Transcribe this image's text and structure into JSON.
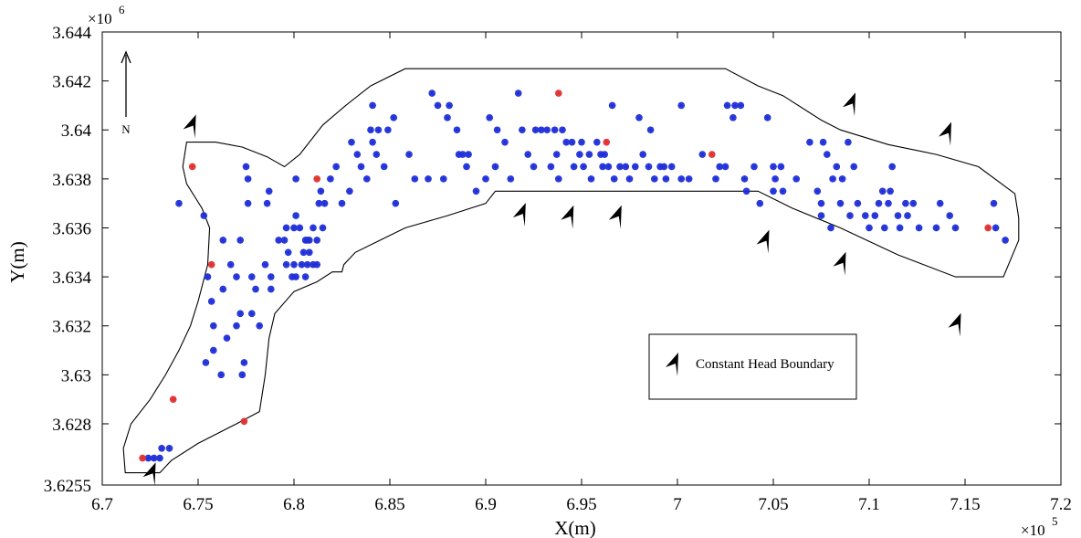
{
  "chart_data": {
    "type": "scatter",
    "xlabel": "X(m)",
    "ylabel": "Y(m)",
    "x_exponent_label": "×10",
    "x_exponent": "5",
    "y_exponent_label": "×10",
    "y_exponent": "6",
    "north_label": "N",
    "xlim": [
      6.7,
      7.2
    ],
    "ylim": [
      3.6255,
      3.644
    ],
    "x_ticks": [
      6.7,
      6.75,
      6.8,
      6.85,
      6.9,
      6.95,
      7.0,
      7.05,
      7.1,
      7.15,
      7.2
    ],
    "x_tick_labels": [
      "6.7",
      "6.75",
      "6.8",
      "6.85",
      "6.9",
      "6.95",
      "7",
      "7.05",
      "7.1",
      "7.15",
      "7.2"
    ],
    "y_ticks": [
      3.6255,
      3.628,
      3.63,
      3.632,
      3.634,
      3.636,
      3.638,
      3.64,
      3.642,
      3.644
    ],
    "y_tick_labels": [
      "3.6255",
      "3.628",
      "3.63",
      "3.632",
      "3.634",
      "3.636",
      "3.638",
      "3.64",
      "3.642",
      "3.644"
    ],
    "grid": false,
    "colors": {
      "wells_blue": "#1f2fd8",
      "wells_red": "#e03030",
      "boundary": "#000000"
    },
    "legend": {
      "placement": "bottom-right-inside",
      "entries": [
        {
          "label": "Constant Head Boundary",
          "marker": "arrowhead"
        }
      ]
    },
    "boundary_polygon": [
      [
        6.744,
        3.6395
      ],
      [
        6.759,
        3.6395
      ],
      [
        6.773,
        3.6393
      ],
      [
        6.786,
        3.6389
      ],
      [
        6.795,
        3.6385
      ],
      [
        6.803,
        3.639
      ],
      [
        6.815,
        3.6402
      ],
      [
        6.827,
        3.641
      ],
      [
        6.84,
        3.6418
      ],
      [
        6.858,
        3.6425
      ],
      [
        6.87,
        3.6425
      ],
      [
        6.9,
        3.6425
      ],
      [
        7.025,
        3.6425
      ],
      [
        7.042,
        3.6418
      ],
      [
        7.055,
        3.6414
      ],
      [
        7.075,
        3.6404
      ],
      [
        7.085,
        3.64
      ],
      [
        7.11,
        3.6394
      ],
      [
        7.135,
        3.639
      ],
      [
        7.157,
        3.6385
      ],
      [
        7.176,
        3.6374
      ],
      [
        7.178,
        3.6364
      ],
      [
        7.178,
        3.6355
      ],
      [
        7.17,
        3.634
      ],
      [
        7.145,
        3.634
      ],
      [
        7.115,
        3.6349
      ],
      [
        7.085,
        3.636
      ],
      [
        7.06,
        3.6368
      ],
      [
        7.042,
        3.6375
      ],
      [
        7.032,
        3.6375
      ],
      [
        6.905,
        3.6375
      ],
      [
        6.9,
        3.637
      ],
      [
        6.88,
        3.6365
      ],
      [
        6.858,
        3.636
      ],
      [
        6.845,
        3.6355
      ],
      [
        6.832,
        3.635
      ],
      [
        6.826,
        3.6345
      ],
      [
        6.825,
        3.6342
      ],
      [
        6.82,
        3.6342
      ],
      [
        6.812,
        3.6338
      ],
      [
        6.8,
        3.6334
      ],
      [
        6.79,
        3.6325
      ],
      [
        6.787,
        3.6315
      ],
      [
        6.785,
        3.63
      ],
      [
        6.783,
        3.629
      ],
      [
        6.782,
        3.6285
      ],
      [
        6.77,
        3.628
      ],
      [
        6.75,
        3.6272
      ],
      [
        6.736,
        3.6265
      ],
      [
        6.73,
        3.626
      ],
      [
        6.712,
        3.626
      ],
      [
        6.711,
        3.627
      ],
      [
        6.715,
        3.628
      ],
      [
        6.725,
        3.629
      ],
      [
        6.733,
        3.63
      ],
      [
        6.74,
        3.631
      ],
      [
        6.746,
        3.632
      ],
      [
        6.75,
        3.633
      ],
      [
        6.755,
        3.6345
      ],
      [
        6.756,
        3.636
      ],
      [
        6.752,
        3.6368
      ],
      [
        6.744,
        3.6378
      ],
      [
        6.742,
        3.6385
      ]
    ],
    "boundary_arrows": [
      [
        6.725,
        3.6259
      ],
      [
        6.746,
        3.6401
      ],
      [
        6.918,
        3.6365
      ],
      [
        6.943,
        3.6364
      ],
      [
        6.968,
        3.6364
      ],
      [
        7.045,
        3.6354
      ],
      [
        7.085,
        3.6345
      ],
      [
        7.09,
        3.641
      ],
      [
        7.14,
        3.6398
      ],
      [
        7.145,
        3.632
      ],
      [
        7.009,
        3.6305
      ]
    ],
    "series": [
      {
        "name": "",
        "color": "#e03030",
        "points": [
          [
            6.747,
            3.6385
          ],
          [
            6.812,
            3.638
          ],
          [
            6.938,
            3.6415
          ],
          [
            6.963,
            3.6395
          ],
          [
            7.018,
            3.639
          ],
          [
            7.162,
            3.636
          ],
          [
            6.757,
            3.6345
          ],
          [
            6.737,
            3.629
          ],
          [
            6.774,
            3.6281
          ],
          [
            6.721,
            3.6266
          ]
        ]
      },
      {
        "name": "",
        "color": "#1f2fd8",
        "points": [
          [
            6.724,
            3.6266
          ],
          [
            6.727,
            3.6266
          ],
          [
            6.73,
            3.6266
          ],
          [
            6.731,
            3.627
          ],
          [
            6.735,
            3.627
          ],
          [
            6.74,
            3.637
          ],
          [
            6.753,
            3.6365
          ],
          [
            6.755,
            3.634
          ],
          [
            6.757,
            3.633
          ],
          [
            6.758,
            3.632
          ],
          [
            6.758,
            3.631
          ],
          [
            6.754,
            3.6305
          ],
          [
            6.762,
            3.63
          ],
          [
            6.763,
            3.6335
          ],
          [
            6.765,
            3.6315
          ],
          [
            6.763,
            3.6355
          ],
          [
            6.767,
            3.6345
          ],
          [
            6.77,
            3.634
          ],
          [
            6.77,
            3.632
          ],
          [
            6.772,
            3.6325
          ],
          [
            6.774,
            3.6305
          ],
          [
            6.773,
            3.63
          ],
          [
            6.772,
            3.6355
          ],
          [
            6.775,
            3.6385
          ],
          [
            6.776,
            3.638
          ],
          [
            6.776,
            3.637
          ],
          [
            6.778,
            3.634
          ],
          [
            6.778,
            3.6325
          ],
          [
            6.78,
            3.6335
          ],
          [
            6.782,
            3.632
          ],
          [
            6.785,
            3.6345
          ],
          [
            6.786,
            3.637
          ],
          [
            6.787,
            3.6375
          ],
          [
            6.788,
            3.6335
          ],
          [
            6.788,
            3.634
          ],
          [
            6.792,
            3.6355
          ],
          [
            6.795,
            3.6355
          ],
          [
            6.796,
            3.636
          ],
          [
            6.796,
            3.6345
          ],
          [
            6.797,
            3.635
          ],
          [
            6.799,
            3.634
          ],
          [
            6.8,
            3.6345
          ],
          [
            6.8,
            3.636
          ],
          [
            6.801,
            3.638
          ],
          [
            6.801,
            3.6365
          ],
          [
            6.801,
            3.634
          ],
          [
            6.803,
            3.636
          ],
          [
            6.804,
            3.6345
          ],
          [
            6.805,
            3.635
          ],
          [
            6.806,
            3.6355
          ],
          [
            6.806,
            3.634
          ],
          [
            6.807,
            3.6355
          ],
          [
            6.807,
            3.6345
          ],
          [
            6.808,
            3.6355
          ],
          [
            6.808,
            3.635
          ],
          [
            6.81,
            3.6345
          ],
          [
            6.81,
            3.636
          ],
          [
            6.812,
            3.6345
          ],
          [
            6.812,
            3.6355
          ],
          [
            6.813,
            3.637
          ],
          [
            6.814,
            3.6375
          ],
          [
            6.815,
            3.636
          ],
          [
            6.816,
            3.637
          ],
          [
            6.819,
            3.638
          ],
          [
            6.822,
            3.6385
          ],
          [
            6.825,
            3.637
          ],
          [
            6.829,
            3.6375
          ],
          [
            6.83,
            3.6395
          ],
          [
            6.833,
            3.639
          ],
          [
            6.835,
            3.6385
          ],
          [
            6.838,
            3.638
          ],
          [
            6.84,
            3.64
          ],
          [
            6.841,
            3.6395
          ],
          [
            6.841,
            3.641
          ],
          [
            6.843,
            3.639
          ],
          [
            6.844,
            3.64
          ],
          [
            6.847,
            3.6385
          ],
          [
            6.849,
            3.64
          ],
          [
            6.852,
            3.6405
          ],
          [
            6.853,
            3.637
          ],
          [
            6.86,
            3.639
          ],
          [
            6.863,
            3.638
          ],
          [
            6.87,
            3.638
          ],
          [
            6.872,
            3.6415
          ],
          [
            6.875,
            3.641
          ],
          [
            6.878,
            3.638
          ],
          [
            6.88,
            3.6405
          ],
          [
            6.881,
            3.641
          ],
          [
            6.885,
            3.64
          ],
          [
            6.886,
            3.639
          ],
          [
            6.888,
            3.639
          ],
          [
            6.89,
            3.6385
          ],
          [
            6.891,
            3.639
          ],
          [
            6.895,
            3.6375
          ],
          [
            6.9,
            3.638
          ],
          [
            6.902,
            3.6405
          ],
          [
            6.905,
            3.6385
          ],
          [
            6.906,
            3.64
          ],
          [
            6.91,
            3.6395
          ],
          [
            6.913,
            3.638
          ],
          [
            6.917,
            3.6415
          ],
          [
            6.919,
            3.64
          ],
          [
            6.922,
            3.639
          ],
          [
            6.925,
            3.6385
          ],
          [
            6.926,
            3.64
          ],
          [
            6.929,
            3.64
          ],
          [
            6.932,
            3.64
          ],
          [
            6.934,
            3.6385
          ],
          [
            6.936,
            3.64
          ],
          [
            6.937,
            3.639
          ],
          [
            6.938,
            3.638
          ],
          [
            6.94,
            3.64
          ],
          [
            6.942,
            3.6395
          ],
          [
            6.945,
            3.6395
          ],
          [
            6.946,
            3.6385
          ],
          [
            6.949,
            3.639
          ],
          [
            6.95,
            3.6395
          ],
          [
            6.951,
            3.6385
          ],
          [
            6.954,
            3.639
          ],
          [
            6.955,
            3.638
          ],
          [
            6.958,
            3.6395
          ],
          [
            6.96,
            3.639
          ],
          [
            6.961,
            3.6385
          ],
          [
            6.962,
            3.639
          ],
          [
            6.964,
            3.6385
          ],
          [
            6.966,
            3.641
          ],
          [
            6.967,
            3.638
          ],
          [
            6.97,
            3.6385
          ],
          [
            6.973,
            3.6385
          ],
          [
            6.975,
            3.638
          ],
          [
            6.978,
            3.6385
          ],
          [
            6.98,
            3.6405
          ],
          [
            6.982,
            3.639
          ],
          [
            6.985,
            3.6385
          ],
          [
            6.986,
            3.64
          ],
          [
            6.988,
            3.638
          ],
          [
            6.991,
            3.6385
          ],
          [
            6.993,
            3.6385
          ],
          [
            6.994,
            3.638
          ],
          [
            6.997,
            3.6385
          ],
          [
            7.002,
            3.641
          ],
          [
            7.002,
            3.638
          ],
          [
            7.006,
            3.638
          ],
          [
            7.013,
            3.639
          ],
          [
            7.02,
            3.638
          ],
          [
            7.022,
            3.6385
          ],
          [
            7.025,
            3.6385
          ],
          [
            7.026,
            3.641
          ],
          [
            7.029,
            3.6405
          ],
          [
            7.03,
            3.641
          ],
          [
            7.033,
            3.641
          ],
          [
            7.035,
            3.638
          ],
          [
            7.036,
            3.6375
          ],
          [
            7.04,
            3.6385
          ],
          [
            7.043,
            3.637
          ],
          [
            7.047,
            3.6405
          ],
          [
            7.05,
            3.6385
          ],
          [
            7.05,
            3.6375
          ],
          [
            7.051,
            3.638
          ],
          [
            7.054,
            3.6385
          ],
          [
            7.055,
            3.6375
          ],
          [
            7.062,
            3.638
          ],
          [
            7.069,
            3.6395
          ],
          [
            7.073,
            3.6375
          ],
          [
            7.075,
            3.6365
          ],
          [
            7.075,
            3.637
          ],
          [
            7.076,
            3.6395
          ],
          [
            7.078,
            3.639
          ],
          [
            7.08,
            3.636
          ],
          [
            7.081,
            3.638
          ],
          [
            7.083,
            3.6385
          ],
          [
            7.085,
            3.637
          ],
          [
            7.086,
            3.638
          ],
          [
            7.089,
            3.6395
          ],
          [
            7.09,
            3.6365
          ],
          [
            7.092,
            3.6385
          ],
          [
            7.094,
            3.637
          ],
          [
            7.098,
            3.6365
          ],
          [
            7.1,
            3.636
          ],
          [
            7.103,
            3.6365
          ],
          [
            7.105,
            3.637
          ],
          [
            7.107,
            3.6375
          ],
          [
            7.108,
            3.636
          ],
          [
            7.11,
            3.637
          ],
          [
            7.111,
            3.6375
          ],
          [
            7.112,
            3.6385
          ],
          [
            7.115,
            3.6365
          ],
          [
            7.116,
            3.636
          ],
          [
            7.119,
            3.637
          ],
          [
            7.12,
            3.6365
          ],
          [
            7.123,
            3.637
          ],
          [
            7.126,
            3.636
          ],
          [
            7.135,
            3.636
          ],
          [
            7.137,
            3.637
          ],
          [
            7.142,
            3.6365
          ],
          [
            7.145,
            3.636
          ],
          [
            7.165,
            3.637
          ],
          [
            7.166,
            3.636
          ],
          [
            7.171,
            3.6355
          ]
        ]
      }
    ]
  }
}
